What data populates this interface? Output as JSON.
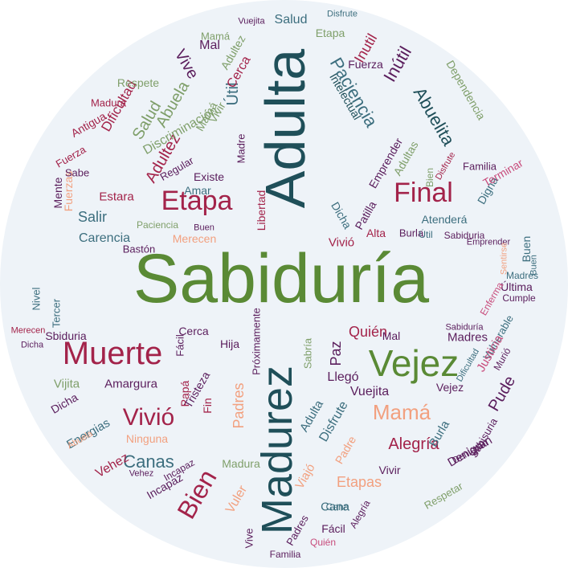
{
  "colors": {
    "background": "#eef3f8",
    "green": "#5a8a35",
    "teal": "#1f4f59",
    "crimson": "#a3234a",
    "purple": "#5a1d5c",
    "peach": "#f2a07f",
    "sage": "#7f9f6a",
    "slate": "#3c6e7e",
    "rose": "#c84c7c"
  },
  "words": [
    {
      "text": "Sabiduría",
      "color": "green"
    },
    {
      "text": "Adulta",
      "color": "teal"
    },
    {
      "text": "Madurez",
      "color": "teal"
    },
    {
      "text": "Vejez",
      "color": "green"
    },
    {
      "text": "Muerte",
      "color": "crimson"
    },
    {
      "text": "Final",
      "color": "crimson"
    },
    {
      "text": "Etapa",
      "color": "crimson"
    },
    {
      "text": "Bien",
      "color": "crimson"
    },
    {
      "text": "Vivió",
      "color": "crimson"
    },
    {
      "text": "Mamá",
      "color": "peach"
    },
    {
      "text": "Canas",
      "color": "slate"
    },
    {
      "text": "Alegría",
      "color": "crimson"
    },
    {
      "text": "Paciencia",
      "color": "slate"
    },
    {
      "text": "Abuelita",
      "color": "teal"
    },
    {
      "text": "Inútil",
      "color": "purple"
    },
    {
      "text": "Salud",
      "color": "sage"
    },
    {
      "text": "Abuela",
      "color": "sage"
    },
    {
      "text": "Adultez",
      "color": "crimson"
    },
    {
      "text": "Útil",
      "color": "slate"
    },
    {
      "text": "Vive",
      "color": "purple"
    },
    {
      "text": "Pude",
      "color": "purple"
    },
    {
      "text": "Etapas",
      "color": "peach"
    },
    {
      "text": "Padres",
      "color": "peach"
    },
    {
      "text": "Quién",
      "color": "crimson"
    },
    {
      "text": "Vuejita",
      "color": "purple"
    },
    {
      "text": "Amargura",
      "color": "purple"
    },
    {
      "text": "Cana",
      "color": "slate"
    },
    {
      "text": "Carencia",
      "color": "slate"
    },
    {
      "text": "Salir",
      "color": "slate"
    },
    {
      "text": "Dificultad",
      "color": "crimson"
    },
    {
      "text": "Discriminación",
      "color": "sage"
    },
    {
      "text": "Antigua",
      "color": "crimson"
    },
    {
      "text": "Intelectual",
      "color": "teal"
    },
    {
      "text": "Dependencia",
      "color": "sage"
    },
    {
      "text": "Emprender",
      "color": "purple"
    },
    {
      "text": "Adultas",
      "color": "sage"
    },
    {
      "text": "Merecen",
      "color": "peach"
    },
    {
      "text": "Paciencia",
      "color": "sage"
    },
    {
      "text": "Amar",
      "color": "slate"
    },
    {
      "text": "Libertad",
      "color": "crimson"
    },
    {
      "text": "Madre",
      "color": "purple"
    },
    {
      "text": "Vivir",
      "color": "sage"
    },
    {
      "text": "Fuerzas",
      "color": "peach"
    },
    {
      "text": "Mente",
      "color": "purple"
    },
    {
      "text": "Estara",
      "color": "crimson"
    },
    {
      "text": "Existe",
      "color": "purple"
    },
    {
      "text": "Regular",
      "color": "purple"
    },
    {
      "text": "Bastón",
      "color": "purple"
    },
    {
      "text": "Atenderá",
      "color": "slate"
    },
    {
      "text": "Alta",
      "color": "crimson"
    },
    {
      "text": "Dicha",
      "color": "slate"
    },
    {
      "text": "Patilla",
      "color": "purple"
    },
    {
      "text": "Familia",
      "color": "purple"
    },
    {
      "text": "Digna",
      "color": "slate"
    },
    {
      "text": "Terminar",
      "color": "rose"
    },
    {
      "text": "Sabiduria",
      "color": "purple"
    },
    {
      "text": "Buen",
      "color": "slate"
    },
    {
      "text": "Última",
      "color": "purple"
    },
    {
      "text": "Madres",
      "color": "slate"
    },
    {
      "text": "Cumple",
      "color": "purple"
    },
    {
      "text": "Enferma",
      "color": "rose"
    },
    {
      "text": "Vulnerable",
      "color": "slate"
    },
    {
      "text": "Justicia",
      "color": "rose"
    },
    {
      "text": "Murió",
      "color": "purple"
    },
    {
      "text": "Respetar",
      "color": "sage"
    },
    {
      "text": "Denigran",
      "color": "purple"
    },
    {
      "text": "Burla",
      "color": "slate"
    },
    {
      "text": "Sabisuria",
      "color": "purple"
    },
    {
      "text": "Energias",
      "color": "slate"
    },
    {
      "text": "Ninguna",
      "color": "peach"
    },
    {
      "text": "Vehez",
      "color": "crimson"
    },
    {
      "text": "Incapaz",
      "color": "purple"
    },
    {
      "text": "Fuerza",
      "color": "crimson"
    },
    {
      "text": "Nivel",
      "color": "slate"
    },
    {
      "text": "Tercer",
      "color": "slate"
    },
    {
      "text": "Sbiduria",
      "color": "purple"
    },
    {
      "text": "Cerca",
      "color": "purple"
    },
    {
      "text": "Hija",
      "color": "purple"
    },
    {
      "text": "Tristeza",
      "color": "purple"
    },
    {
      "text": "Fácil",
      "color": "purple"
    },
    {
      "text": "Vuler",
      "color": "peach"
    },
    {
      "text": "Próximamente",
      "color": "purple"
    },
    {
      "text": "Disfrute",
      "color": "slate"
    },
    {
      "text": "Viajó",
      "color": "peach"
    },
    {
      "text": "Padre",
      "color": "peach"
    },
    {
      "text": "Paz",
      "color": "purple"
    },
    {
      "text": "Llegó",
      "color": "purple"
    },
    {
      "text": "Sabría",
      "color": "sage"
    },
    {
      "text": "Mal",
      "color": "purple"
    },
    {
      "text": "Vijita",
      "color": "sage"
    },
    {
      "text": "Sabe",
      "color": "purple"
    },
    {
      "text": "Papá",
      "color": "crimson"
    },
    {
      "text": "Fin",
      "color": "crimson"
    },
    {
      "text": "Dicha",
      "color": "purple"
    },
    {
      "text": "Adulta",
      "color": "slate"
    },
    {
      "text": "Respete",
      "color": "sage"
    },
    {
      "text": "Cerca",
      "color": "crimson"
    },
    {
      "text": "Mamá",
      "color": "sage"
    },
    {
      "text": "Salud",
      "color": "slate"
    },
    {
      "text": "Vuejita",
      "color": "purple"
    },
    {
      "text": "Disfrute",
      "color": "slate"
    },
    {
      "text": "Etapa",
      "color": "sage"
    },
    {
      "text": "Fuerza",
      "color": "purple"
    },
    {
      "text": "Inutil",
      "color": "crimson"
    },
    {
      "text": "Madura",
      "color": "crimson"
    },
    {
      "text": "Mal",
      "color": "purple"
    },
    {
      "text": "Mamá",
      "color": "sage"
    },
    {
      "text": "Adultez",
      "color": "sage"
    },
    {
      "text": "Vejez",
      "color": "purple"
    },
    {
      "text": "Disfrute",
      "color": "crimson"
    },
    {
      "text": "Buen",
      "color": "purple"
    },
    {
      "text": "Vivió",
      "color": "crimson"
    },
    {
      "text": "Burla",
      "color": "purple"
    },
    {
      "text": "Útil",
      "color": "slate"
    },
    {
      "text": "Sabiduría",
      "color": "purple"
    },
    {
      "text": "Emprender",
      "color": "purple"
    },
    {
      "text": "Sentirse",
      "color": "peach"
    },
    {
      "text": "Buen",
      "color": "slate"
    },
    {
      "text": "Bien",
      "color": "sage"
    },
    {
      "text": "Familia",
      "color": "purple"
    },
    {
      "text": "Quién",
      "color": "rose"
    },
    {
      "text": "Final",
      "color": "purple"
    },
    {
      "text": "Alegría",
      "color": "purple"
    },
    {
      "text": "Cana",
      "color": "slate"
    },
    {
      "text": "Fácil",
      "color": "purple"
    },
    {
      "text": "Vive",
      "color": "purple"
    },
    {
      "text": "Padres",
      "color": "purple"
    },
    {
      "text": "Madura",
      "color": "sage"
    },
    {
      "text": "Incapaz",
      "color": "purple"
    },
    {
      "text": "Vehez",
      "color": "purple"
    },
    {
      "text": "Abuela",
      "color": "peach"
    },
    {
      "text": "Dicha",
      "color": "purple"
    },
    {
      "text": "Merecen",
      "color": "crimson"
    },
    {
      "text": "Vivir",
      "color": "purple"
    },
    {
      "text": "Dificultad",
      "color": "slate"
    },
    {
      "text": "Madres",
      "color": "purple"
    },
    {
      "text": "Denigran",
      "color": "purple"
    }
  ]
}
